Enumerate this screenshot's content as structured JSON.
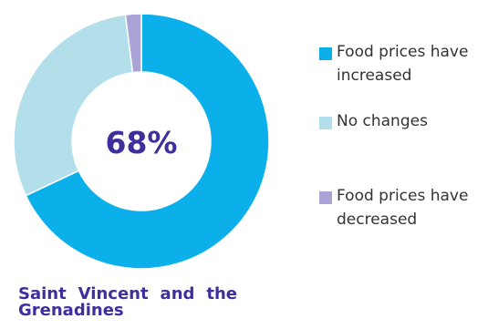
{
  "chart_data": {
    "type": "donut",
    "title": "",
    "subtitle": "Saint Vincent and the Grenadines",
    "center_label": "68%",
    "legend_position": "right",
    "series": [
      {
        "name": "Food prices have increased",
        "value": 68,
        "color": "#0bb0ea"
      },
      {
        "name": "No changes",
        "value": 30,
        "color": "#b3dfeb"
      },
      {
        "name": "Food prices have decreased",
        "value": 2,
        "color": "#aaa3d6"
      }
    ]
  },
  "colors": {
    "title_text": "#3d2f9c",
    "background": "#ffffff"
  }
}
